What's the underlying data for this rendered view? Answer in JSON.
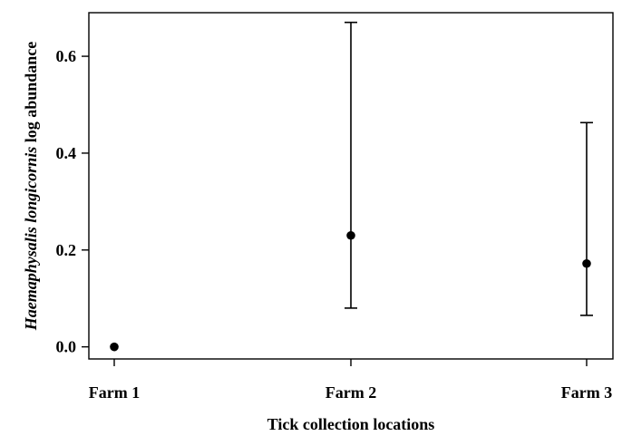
{
  "chart_data": {
    "type": "scatter",
    "categories": [
      "Farm 1",
      "Farm 2",
      "Farm 3"
    ],
    "values": [
      0.0,
      0.23,
      0.172
    ],
    "error_low": [
      0.0,
      0.08,
      0.065
    ],
    "error_high": [
      0.0,
      0.67,
      0.463
    ],
    "xlabel": "Tick collection locations",
    "ylabel_italic": "Haemaphysalis longicornis",
    "ylabel_rest": " log abundance",
    "yticks": [
      "0.0",
      "0.2",
      "0.4",
      "0.6"
    ],
    "ytick_values": [
      0.0,
      0.2,
      0.4,
      0.6
    ],
    "ylim": [
      -0.025,
      0.69
    ],
    "grid": false,
    "legend": "none",
    "colors": {
      "marker": "#000000",
      "axis": "#000000"
    }
  }
}
